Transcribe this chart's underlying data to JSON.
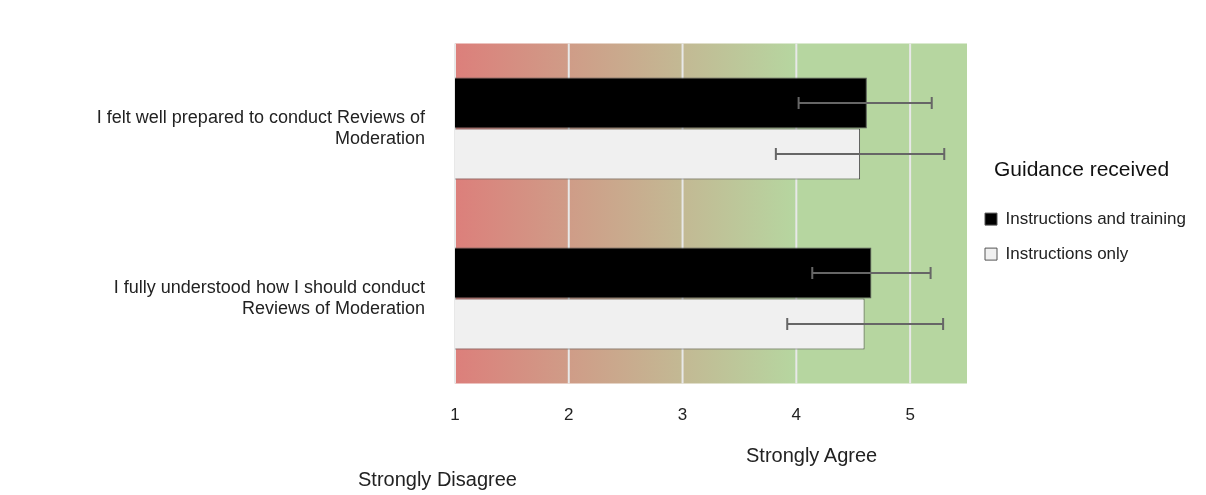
{
  "chart_data": {
    "type": "bar",
    "orientation": "horizontal",
    "categories": [
      "I felt well prepared to conduct Reviews of Moderation",
      "I fully understood how I should conduct Reviews of Moderation"
    ],
    "series": [
      {
        "name": "Instructions and training",
        "color": "#000000",
        "values": [
          4.62,
          4.66
        ],
        "errors": [
          [
            4.02,
            5.19
          ],
          [
            4.14,
            5.18
          ]
        ]
      },
      {
        "name": "Instructions only",
        "color": "#f0f0f0",
        "values": [
          4.56,
          4.6
        ],
        "errors": [
          [
            3.82,
            5.3
          ],
          [
            3.92,
            5.29
          ]
        ]
      }
    ],
    "xlim": [
      1,
      5.5
    ],
    "xticks": [
      1,
      2,
      3,
      4,
      5
    ],
    "grid": "x",
    "legend": "right",
    "legend_title": "Guidance received",
    "bands": [
      {
        "axis": "x",
        "from": 1,
        "to": 4,
        "color": "#dc7f7b"
      },
      {
        "axis": "x",
        "from": 4,
        "to": 5.5,
        "color": "#b6d6a0"
      }
    ],
    "annotations": [
      "Strongly Disagree",
      "Strongly Agree"
    ]
  }
}
